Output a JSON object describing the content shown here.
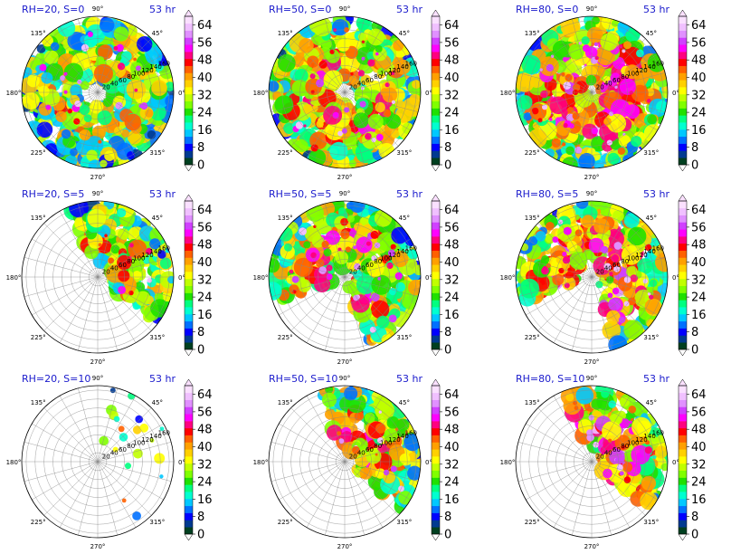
{
  "chart_data": {
    "type": "heatmap",
    "layout": "3x3 polar panels",
    "time_label": "53 hr",
    "angle_ticks": [
      "90°",
      "45°",
      "0°",
      "315°",
      "270°",
      "225°",
      "180°",
      "135°"
    ],
    "radial_ticks": [
      "20",
      "40",
      "60",
      "80",
      "100",
      "120",
      "140",
      "160"
    ],
    "colorbar": {
      "ticks": [
        "0",
        "8",
        "16",
        "24",
        "32",
        "40",
        "48",
        "56",
        "64"
      ],
      "range": [
        0,
        68
      ],
      "extend": "both",
      "colors": [
        "#004020",
        "#003a90",
        "#0000ff",
        "#0070ff",
        "#00c8ff",
        "#00ffd0",
        "#00ff80",
        "#20e000",
        "#80ff00",
        "#c0ff00",
        "#ffff00",
        "#ffd000",
        "#ffa000",
        "#ff6000",
        "#ff0000",
        "#ff0080",
        "#ff00ff",
        "#d040ff",
        "#e090ff",
        "#f0c0ff",
        "#fae0ff"
      ]
    },
    "panels": [
      {
        "title": "RH=20, S=0",
        "time": "53 hr",
        "coverage": "ring",
        "intensity": 0.55
      },
      {
        "title": "RH=50, S=0",
        "time": "53 hr",
        "coverage": "ring",
        "intensity": 0.8
      },
      {
        "title": "RH=80, S=0",
        "time": "53 hr",
        "coverage": "full",
        "intensity": 1.0
      },
      {
        "title": "RH=20, S=5",
        "time": "53 hr",
        "coverage": "northeast",
        "intensity": 0.6
      },
      {
        "title": "RH=50, S=5",
        "time": "53 hr",
        "coverage": "north-ring",
        "intensity": 0.85
      },
      {
        "title": "RH=80, S=5",
        "time": "53 hr",
        "coverage": "north-ring",
        "intensity": 1.0
      },
      {
        "title": "RH=20, S=10",
        "time": "53 hr",
        "coverage": "sparse-east",
        "intensity": 0.5
      },
      {
        "title": "RH=50, S=10",
        "time": "53 hr",
        "coverage": "northeast",
        "intensity": 0.9
      },
      {
        "title": "RH=80, S=10",
        "time": "53 hr",
        "coverage": "northeast",
        "intensity": 1.0
      }
    ]
  }
}
